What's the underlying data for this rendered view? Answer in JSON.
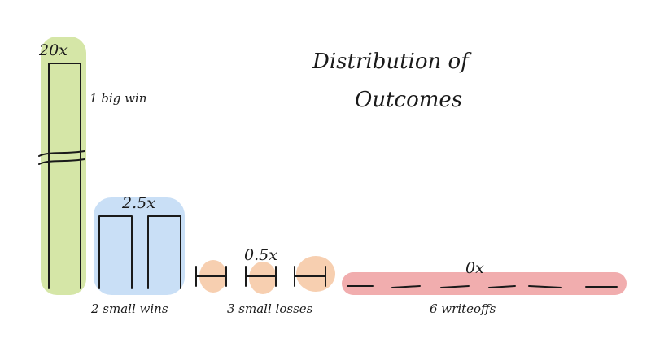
{
  "chart_data": {
    "type": "bar",
    "title": [
      "Distribution of",
      "Outcomes"
    ],
    "groups": [
      {
        "label": "1 big win",
        "value_label": "20x",
        "multiple": 20,
        "count": 1,
        "color": "#d5e6a7",
        "broken_axis": true
      },
      {
        "label": "2 small wins",
        "value_label": "2.5x",
        "multiple": 2.5,
        "count": 2,
        "color": "#c9dff6"
      },
      {
        "label": "3 small losses",
        "value_label": "0.5x",
        "multiple": 0.5,
        "count": 3,
        "color": "#f7cfb0"
      },
      {
        "label": "6 writeoffs",
        "value_label": "0x",
        "multiple": 0,
        "count": 6,
        "color": "#f1adae"
      }
    ]
  }
}
